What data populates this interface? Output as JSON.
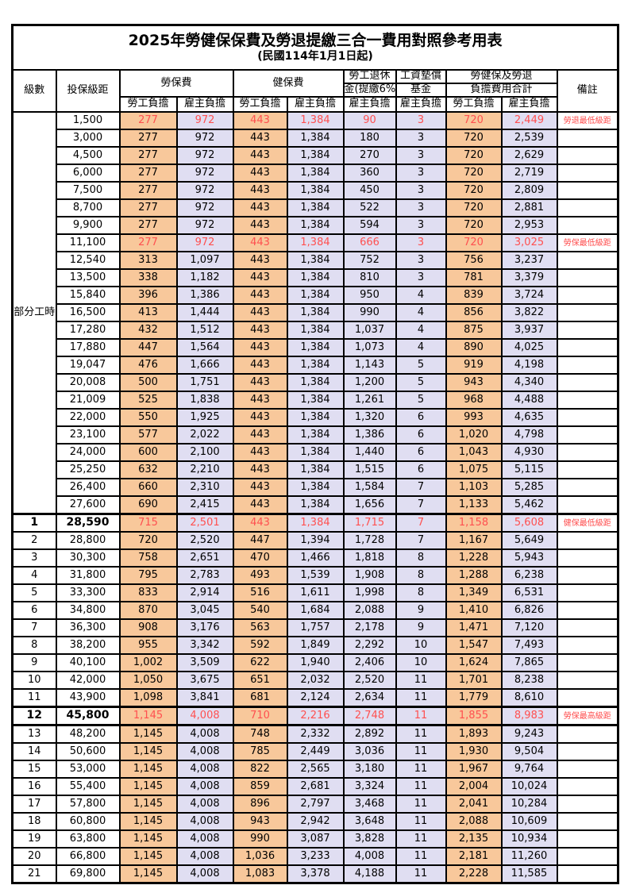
{
  "title": "2025年勞健保保費及勞退提繳三合一費用對照參考用表",
  "subtitle": "(民國114年1月1日起)",
  "colors": {
    "employee_column_bg": "#F8C89B",
    "employer_column_bg": "#E0DEF2",
    "highlight_text": "#FF5050",
    "border": "#000000"
  },
  "header": {
    "level": "級數",
    "bracket": "投保級距",
    "labor_fee": "勞保費",
    "health_fee": "健保費",
    "pension_line1": "勞工退休",
    "pension_line2": "金(提繳6%)",
    "wage_fund_line1": "工資墊償",
    "wage_fund_line2": "基金",
    "total_line1": "勞健保及勞退",
    "total_line2": "負擔費用合計",
    "remark": "備註",
    "employee_share": "勞工負擔",
    "employer_share": "雇主負擔"
  },
  "part_time_label": "部分工時",
  "rows": [
    {
      "level": "",
      "bracket": "1,500",
      "lab_e": "277",
      "lab_r": "972",
      "hea_e": "443",
      "hea_r": "1,384",
      "pen_r": "90",
      "fund_r": "3",
      "tot_e": "720",
      "tot_r": "2,449",
      "remark": "勞退最低級距",
      "red": true,
      "bold": false
    },
    {
      "level": "",
      "bracket": "3,000",
      "lab_e": "277",
      "lab_r": "972",
      "hea_e": "443",
      "hea_r": "1,384",
      "pen_r": "180",
      "fund_r": "3",
      "tot_e": "720",
      "tot_r": "2,539",
      "remark": "",
      "red": false,
      "bold": false
    },
    {
      "level": "",
      "bracket": "4,500",
      "lab_e": "277",
      "lab_r": "972",
      "hea_e": "443",
      "hea_r": "1,384",
      "pen_r": "270",
      "fund_r": "3",
      "tot_e": "720",
      "tot_r": "2,629",
      "remark": "",
      "red": false,
      "bold": false
    },
    {
      "level": "",
      "bracket": "6,000",
      "lab_e": "277",
      "lab_r": "972",
      "hea_e": "443",
      "hea_r": "1,384",
      "pen_r": "360",
      "fund_r": "3",
      "tot_e": "720",
      "tot_r": "2,719",
      "remark": "",
      "red": false,
      "bold": false
    },
    {
      "level": "",
      "bracket": "7,500",
      "lab_e": "277",
      "lab_r": "972",
      "hea_e": "443",
      "hea_r": "1,384",
      "pen_r": "450",
      "fund_r": "3",
      "tot_e": "720",
      "tot_r": "2,809",
      "remark": "",
      "red": false,
      "bold": false
    },
    {
      "level": "",
      "bracket": "8,700",
      "lab_e": "277",
      "lab_r": "972",
      "hea_e": "443",
      "hea_r": "1,384",
      "pen_r": "522",
      "fund_r": "3",
      "tot_e": "720",
      "tot_r": "2,881",
      "remark": "",
      "red": false,
      "bold": false
    },
    {
      "level": "",
      "bracket": "9,900",
      "lab_e": "277",
      "lab_r": "972",
      "hea_e": "443",
      "hea_r": "1,384",
      "pen_r": "594",
      "fund_r": "3",
      "tot_e": "720",
      "tot_r": "2,953",
      "remark": "",
      "red": false,
      "bold": false
    },
    {
      "level": "",
      "bracket": "11,100",
      "lab_e": "277",
      "lab_r": "972",
      "hea_e": "443",
      "hea_r": "1,384",
      "pen_r": "666",
      "fund_r": "3",
      "tot_e": "720",
      "tot_r": "3,025",
      "remark": "勞保最低級距",
      "red": true,
      "bold": false
    },
    {
      "level": "",
      "bracket": "12,540",
      "lab_e": "313",
      "lab_r": "1,097",
      "hea_e": "443",
      "hea_r": "1,384",
      "pen_r": "752",
      "fund_r": "3",
      "tot_e": "756",
      "tot_r": "3,237",
      "remark": "",
      "red": false,
      "bold": false
    },
    {
      "level": "",
      "bracket": "13,500",
      "lab_e": "338",
      "lab_r": "1,182",
      "hea_e": "443",
      "hea_r": "1,384",
      "pen_r": "810",
      "fund_r": "3",
      "tot_e": "781",
      "tot_r": "3,379",
      "remark": "",
      "red": false,
      "bold": false
    },
    {
      "level": "",
      "bracket": "15,840",
      "lab_e": "396",
      "lab_r": "1,386",
      "hea_e": "443",
      "hea_r": "1,384",
      "pen_r": "950",
      "fund_r": "4",
      "tot_e": "839",
      "tot_r": "3,724",
      "remark": "",
      "red": false,
      "bold": false
    },
    {
      "level": "",
      "bracket": "16,500",
      "lab_e": "413",
      "lab_r": "1,444",
      "hea_e": "443",
      "hea_r": "1,384",
      "pen_r": "990",
      "fund_r": "4",
      "tot_e": "856",
      "tot_r": "3,822",
      "remark": "",
      "red": false,
      "bold": false
    },
    {
      "level": "",
      "bracket": "17,280",
      "lab_e": "432",
      "lab_r": "1,512",
      "hea_e": "443",
      "hea_r": "1,384",
      "pen_r": "1,037",
      "fund_r": "4",
      "tot_e": "875",
      "tot_r": "3,937",
      "remark": "",
      "red": false,
      "bold": false
    },
    {
      "level": "",
      "bracket": "17,880",
      "lab_e": "447",
      "lab_r": "1,564",
      "hea_e": "443",
      "hea_r": "1,384",
      "pen_r": "1,073",
      "fund_r": "4",
      "tot_e": "890",
      "tot_r": "4,025",
      "remark": "",
      "red": false,
      "bold": false
    },
    {
      "level": "",
      "bracket": "19,047",
      "lab_e": "476",
      "lab_r": "1,666",
      "hea_e": "443",
      "hea_r": "1,384",
      "pen_r": "1,143",
      "fund_r": "5",
      "tot_e": "919",
      "tot_r": "4,198",
      "remark": "",
      "red": false,
      "bold": false
    },
    {
      "level": "",
      "bracket": "20,008",
      "lab_e": "500",
      "lab_r": "1,751",
      "hea_e": "443",
      "hea_r": "1,384",
      "pen_r": "1,200",
      "fund_r": "5",
      "tot_e": "943",
      "tot_r": "4,340",
      "remark": "",
      "red": false,
      "bold": false
    },
    {
      "level": "",
      "bracket": "21,009",
      "lab_e": "525",
      "lab_r": "1,838",
      "hea_e": "443",
      "hea_r": "1,384",
      "pen_r": "1,261",
      "fund_r": "5",
      "tot_e": "968",
      "tot_r": "4,488",
      "remark": "",
      "red": false,
      "bold": false
    },
    {
      "level": "",
      "bracket": "22,000",
      "lab_e": "550",
      "lab_r": "1,925",
      "hea_e": "443",
      "hea_r": "1,384",
      "pen_r": "1,320",
      "fund_r": "6",
      "tot_e": "993",
      "tot_r": "4,635",
      "remark": "",
      "red": false,
      "bold": false
    },
    {
      "level": "",
      "bracket": "23,100",
      "lab_e": "577",
      "lab_r": "2,022",
      "hea_e": "443",
      "hea_r": "1,384",
      "pen_r": "1,386",
      "fund_r": "6",
      "tot_e": "1,020",
      "tot_r": "4,798",
      "remark": "",
      "red": false,
      "bold": false
    },
    {
      "level": "",
      "bracket": "24,000",
      "lab_e": "600",
      "lab_r": "2,100",
      "hea_e": "443",
      "hea_r": "1,384",
      "pen_r": "1,440",
      "fund_r": "6",
      "tot_e": "1,043",
      "tot_r": "4,930",
      "remark": "",
      "red": false,
      "bold": false
    },
    {
      "level": "",
      "bracket": "25,250",
      "lab_e": "632",
      "lab_r": "2,210",
      "hea_e": "443",
      "hea_r": "1,384",
      "pen_r": "1,515",
      "fund_r": "6",
      "tot_e": "1,075",
      "tot_r": "5,115",
      "remark": "",
      "red": false,
      "bold": false
    },
    {
      "level": "",
      "bracket": "26,400",
      "lab_e": "660",
      "lab_r": "2,310",
      "hea_e": "443",
      "hea_r": "1,384",
      "pen_r": "1,584",
      "fund_r": "7",
      "tot_e": "1,103",
      "tot_r": "5,285",
      "remark": "",
      "red": false,
      "bold": false
    },
    {
      "level": "",
      "bracket": "27,600",
      "lab_e": "690",
      "lab_r": "2,415",
      "hea_e": "443",
      "hea_r": "1,384",
      "pen_r": "1,656",
      "fund_r": "7",
      "tot_e": "1,133",
      "tot_r": "5,462",
      "remark": "",
      "red": false,
      "bold": false
    },
    {
      "level": "1",
      "bracket": "28,590",
      "lab_e": "715",
      "lab_r": "2,501",
      "hea_e": "443",
      "hea_r": "1,384",
      "pen_r": "1,715",
      "fund_r": "7",
      "tot_e": "1,158",
      "tot_r": "5,608",
      "remark": "健保最低級距",
      "red": true,
      "bold": true
    },
    {
      "level": "2",
      "bracket": "28,800",
      "lab_e": "720",
      "lab_r": "2,520",
      "hea_e": "447",
      "hea_r": "1,394",
      "pen_r": "1,728",
      "fund_r": "7",
      "tot_e": "1,167",
      "tot_r": "5,649",
      "remark": "",
      "red": false,
      "bold": false
    },
    {
      "level": "3",
      "bracket": "30,300",
      "lab_e": "758",
      "lab_r": "2,651",
      "hea_e": "470",
      "hea_r": "1,466",
      "pen_r": "1,818",
      "fund_r": "8",
      "tot_e": "1,228",
      "tot_r": "5,943",
      "remark": "",
      "red": false,
      "bold": false
    },
    {
      "level": "4",
      "bracket": "31,800",
      "lab_e": "795",
      "lab_r": "2,783",
      "hea_e": "493",
      "hea_r": "1,539",
      "pen_r": "1,908",
      "fund_r": "8",
      "tot_e": "1,288",
      "tot_r": "6,238",
      "remark": "",
      "red": false,
      "bold": false
    },
    {
      "level": "5",
      "bracket": "33,300",
      "lab_e": "833",
      "lab_r": "2,914",
      "hea_e": "516",
      "hea_r": "1,611",
      "pen_r": "1,998",
      "fund_r": "8",
      "tot_e": "1,349",
      "tot_r": "6,531",
      "remark": "",
      "red": false,
      "bold": false
    },
    {
      "level": "6",
      "bracket": "34,800",
      "lab_e": "870",
      "lab_r": "3,045",
      "hea_e": "540",
      "hea_r": "1,684",
      "pen_r": "2,088",
      "fund_r": "9",
      "tot_e": "1,410",
      "tot_r": "6,826",
      "remark": "",
      "red": false,
      "bold": false
    },
    {
      "level": "7",
      "bracket": "36,300",
      "lab_e": "908",
      "lab_r": "3,176",
      "hea_e": "563",
      "hea_r": "1,757",
      "pen_r": "2,178",
      "fund_r": "9",
      "tot_e": "1,471",
      "tot_r": "7,120",
      "remark": "",
      "red": false,
      "bold": false
    },
    {
      "level": "8",
      "bracket": "38,200",
      "lab_e": "955",
      "lab_r": "3,342",
      "hea_e": "592",
      "hea_r": "1,849",
      "pen_r": "2,292",
      "fund_r": "10",
      "tot_e": "1,547",
      "tot_r": "7,493",
      "remark": "",
      "red": false,
      "bold": false
    },
    {
      "level": "9",
      "bracket": "40,100",
      "lab_e": "1,002",
      "lab_r": "3,509",
      "hea_e": "622",
      "hea_r": "1,940",
      "pen_r": "2,406",
      "fund_r": "10",
      "tot_e": "1,624",
      "tot_r": "7,865",
      "remark": "",
      "red": false,
      "bold": false
    },
    {
      "level": "10",
      "bracket": "42,000",
      "lab_e": "1,050",
      "lab_r": "3,675",
      "hea_e": "651",
      "hea_r": "2,032",
      "pen_r": "2,520",
      "fund_r": "11",
      "tot_e": "1,701",
      "tot_r": "8,238",
      "remark": "",
      "red": false,
      "bold": false
    },
    {
      "level": "11",
      "bracket": "43,900",
      "lab_e": "1,098",
      "lab_r": "3,841",
      "hea_e": "681",
      "hea_r": "2,124",
      "pen_r": "2,634",
      "fund_r": "11",
      "tot_e": "1,779",
      "tot_r": "8,610",
      "remark": "",
      "red": false,
      "bold": false
    },
    {
      "level": "12",
      "bracket": "45,800",
      "lab_e": "1,145",
      "lab_r": "4,008",
      "hea_e": "710",
      "hea_r": "2,216",
      "pen_r": "2,748",
      "fund_r": "11",
      "tot_e": "1,855",
      "tot_r": "8,983",
      "remark": "勞保最高級距",
      "red": true,
      "bold": true
    },
    {
      "level": "13",
      "bracket": "48,200",
      "lab_e": "1,145",
      "lab_r": "4,008",
      "hea_e": "748",
      "hea_r": "2,332",
      "pen_r": "2,892",
      "fund_r": "11",
      "tot_e": "1,893",
      "tot_r": "9,243",
      "remark": "",
      "red": false,
      "bold": false
    },
    {
      "level": "14",
      "bracket": "50,600",
      "lab_e": "1,145",
      "lab_r": "4,008",
      "hea_e": "785",
      "hea_r": "2,449",
      "pen_r": "3,036",
      "fund_r": "11",
      "tot_e": "1,930",
      "tot_r": "9,504",
      "remark": "",
      "red": false,
      "bold": false
    },
    {
      "level": "15",
      "bracket": "53,000",
      "lab_e": "1,145",
      "lab_r": "4,008",
      "hea_e": "822",
      "hea_r": "2,565",
      "pen_r": "3,180",
      "fund_r": "11",
      "tot_e": "1,967",
      "tot_r": "9,764",
      "remark": "",
      "red": false,
      "bold": false
    },
    {
      "level": "16",
      "bracket": "55,400",
      "lab_e": "1,145",
      "lab_r": "4,008",
      "hea_e": "859",
      "hea_r": "2,681",
      "pen_r": "3,324",
      "fund_r": "11",
      "tot_e": "2,004",
      "tot_r": "10,024",
      "remark": "",
      "red": false,
      "bold": false
    },
    {
      "level": "17",
      "bracket": "57,800",
      "lab_e": "1,145",
      "lab_r": "4,008",
      "hea_e": "896",
      "hea_r": "2,797",
      "pen_r": "3,468",
      "fund_r": "11",
      "tot_e": "2,041",
      "tot_r": "10,284",
      "remark": "",
      "red": false,
      "bold": false
    },
    {
      "level": "18",
      "bracket": "60,800",
      "lab_e": "1,145",
      "lab_r": "4,008",
      "hea_e": "943",
      "hea_r": "2,942",
      "pen_r": "3,648",
      "fund_r": "11",
      "tot_e": "2,088",
      "tot_r": "10,609",
      "remark": "",
      "red": false,
      "bold": false
    },
    {
      "level": "19",
      "bracket": "63,800",
      "lab_e": "1,145",
      "lab_r": "4,008",
      "hea_e": "990",
      "hea_r": "3,087",
      "pen_r": "3,828",
      "fund_r": "11",
      "tot_e": "2,135",
      "tot_r": "10,934",
      "remark": "",
      "red": false,
      "bold": false
    },
    {
      "level": "20",
      "bracket": "66,800",
      "lab_e": "1,145",
      "lab_r": "4,008",
      "hea_e": "1,036",
      "hea_r": "3,233",
      "pen_r": "4,008",
      "fund_r": "11",
      "tot_e": "2,181",
      "tot_r": "11,260",
      "remark": "",
      "red": false,
      "bold": false
    },
    {
      "level": "21",
      "bracket": "69,800",
      "lab_e": "1,145",
      "lab_r": "4,008",
      "hea_e": "1,083",
      "hea_r": "3,378",
      "pen_r": "4,188",
      "fund_r": "11",
      "tot_e": "2,228",
      "tot_r": "11,585",
      "remark": "",
      "red": false,
      "bold": false
    }
  ]
}
